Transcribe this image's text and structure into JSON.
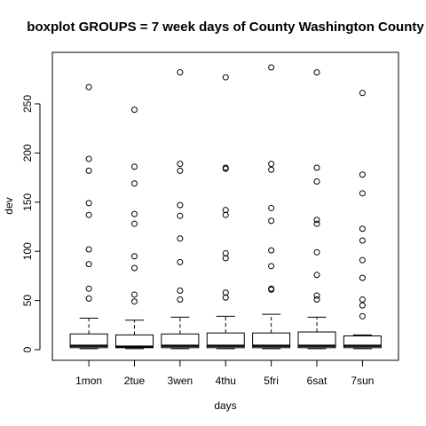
{
  "chart_data": {
    "type": "boxplot",
    "title": "boxplot GROUPS = 7 week days of County Washington County",
    "xlabel": "days",
    "ylabel": "dev",
    "ylim": [
      -10,
      297
    ],
    "yticks": [
      0,
      50,
      100,
      150,
      200,
      250
    ],
    "grid": false,
    "legend": "none",
    "categories": [
      "1mon",
      "2tue",
      "3wen",
      "4thu",
      "5fri",
      "6sat",
      "7sun"
    ],
    "boxes": [
      {
        "whisker_low": 1,
        "q1": 2,
        "median": 4,
        "q3": 16,
        "whisker_high": 32,
        "outliers": [
          52,
          62,
          87,
          102,
          137,
          149,
          182,
          194,
          267
        ]
      },
      {
        "whisker_low": 1,
        "q1": 2,
        "median": 3,
        "q3": 15,
        "whisker_high": 30,
        "outliers": [
          49,
          56,
          83,
          95,
          128,
          138,
          169,
          186,
          244
        ]
      },
      {
        "whisker_low": 1,
        "q1": 2,
        "median": 4,
        "q3": 16,
        "whisker_high": 33,
        "outliers": [
          51,
          60,
          89,
          113,
          136,
          147,
          182,
          189,
          282
        ]
      },
      {
        "whisker_low": 1,
        "q1": 2,
        "median": 4,
        "q3": 17,
        "whisker_high": 34,
        "outliers": [
          53,
          58,
          93,
          98,
          137,
          142,
          184,
          185,
          277
        ]
      },
      {
        "whisker_low": 1,
        "q1": 2,
        "median": 4,
        "q3": 17,
        "whisker_high": 36,
        "outliers": [
          61,
          62,
          85,
          101,
          131,
          144,
          183,
          189,
          287
        ]
      },
      {
        "whisker_low": 1,
        "q1": 2,
        "median": 4,
        "q3": 18,
        "whisker_high": 33,
        "outliers": [
          51,
          55,
          76,
          99,
          128,
          132,
          171,
          185,
          282
        ]
      },
      {
        "whisker_low": 1,
        "q1": 2,
        "median": 4,
        "q3": 14,
        "whisker_high": 15,
        "outliers": [
          34,
          45,
          51,
          73,
          91,
          111,
          123,
          159,
          178,
          261
        ]
      }
    ]
  }
}
